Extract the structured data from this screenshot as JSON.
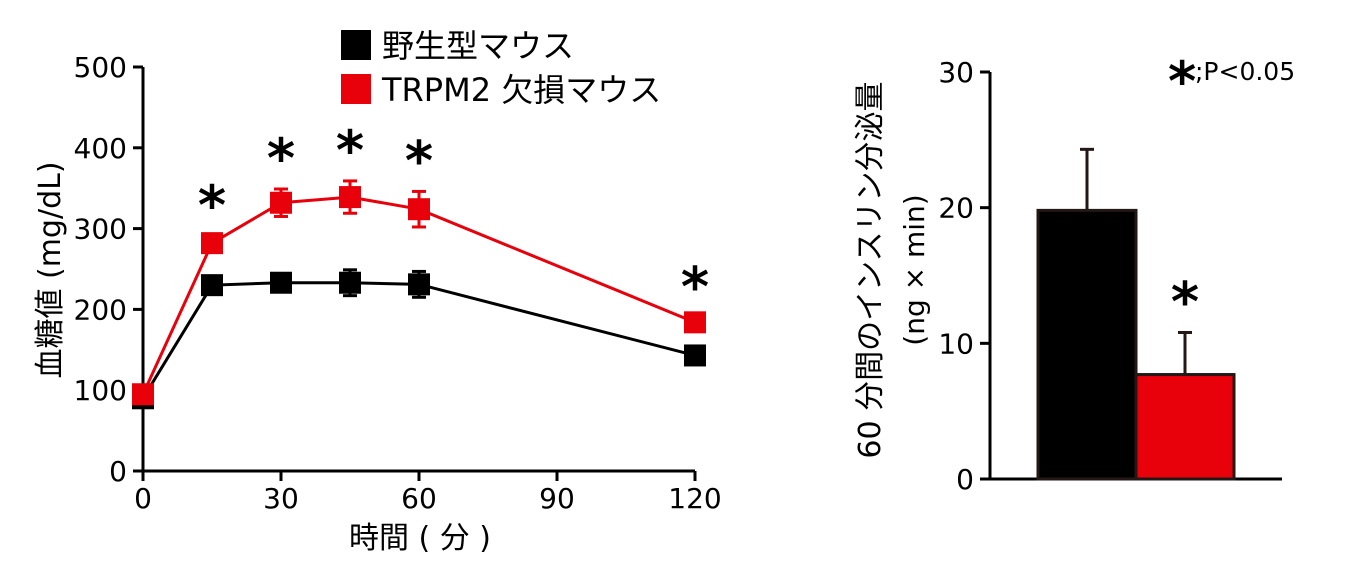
{
  "colors": {
    "wildtype": "#000000",
    "knockout": "#e8000b"
  },
  "chart_data": [
    {
      "type": "line",
      "xlabel": "時間 ( 分 )",
      "ylabel": "血糖値 (mg/dL)",
      "xlim": [
        0,
        120
      ],
      "ylim": [
        0,
        500
      ],
      "xticks": [
        0,
        30,
        60,
        90,
        120
      ],
      "yticks": [
        0,
        100,
        200,
        300,
        400,
        500
      ],
      "x": [
        0,
        15,
        30,
        45,
        60,
        120
      ],
      "series": [
        {
          "name": "野生型マウス",
          "color": "#000000",
          "values": [
            90,
            230,
            233,
            233,
            231,
            143
          ],
          "errors": [
            5,
            10,
            10,
            16,
            16,
            6
          ]
        },
        {
          "name": "TRPM2 欠損マウス",
          "color": "#e8000b",
          "values": [
            95,
            282,
            332,
            339,
            324,
            184
          ],
          "errors": [
            5,
            9,
            17,
            20,
            22,
            6
          ]
        }
      ],
      "significance_marks": [
        {
          "x": 15,
          "label": "*"
        },
        {
          "x": 30,
          "label": "*"
        },
        {
          "x": 45,
          "label": "*"
        },
        {
          "x": 60,
          "label": "*"
        },
        {
          "x": 120,
          "label": "*"
        }
      ],
      "legend_position": "top"
    },
    {
      "type": "bar",
      "ylabel_line1": "60 分間のインスリン分泌量",
      "ylabel_line2": "(ng × min)",
      "ylim": [
        0,
        30
      ],
      "yticks": [
        0,
        10,
        20,
        30
      ],
      "categories": [
        "野生型マウス",
        "TRPM2 欠損マウス"
      ],
      "values": [
        19.8,
        7.7
      ],
      "errors": [
        4.5,
        3.1
      ],
      "colors": [
        "#000000",
        "#e8000b"
      ],
      "significance_marks": [
        {
          "category": "TRPM2 欠損マウス",
          "label": "*"
        }
      ],
      "annotation_star": "*",
      "annotation_text": ";P<0.05"
    }
  ]
}
